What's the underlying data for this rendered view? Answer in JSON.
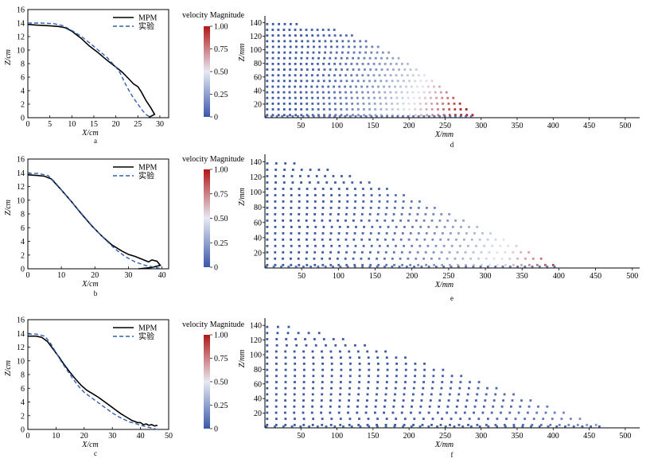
{
  "colorbar": {
    "title": "velocity Magnitude",
    "ticks": [
      "1.00",
      "0.75",
      "0.50",
      "0.25",
      "0"
    ],
    "colors": {
      "low": "#3a57a8",
      "mid": "#e6e9f2",
      "high": "#b01818"
    }
  },
  "legend": {
    "mpm": "MPM",
    "exp": "实验"
  },
  "series_colors": {
    "mpm": "#000000",
    "exp": "#2f5fb5"
  },
  "chart_data": [
    {
      "panel": "a",
      "type": "line",
      "xlabel": "X/cm",
      "ylabel": "Z/cm",
      "xlim": [
        0,
        32
      ],
      "ylim": [
        0,
        16
      ],
      "xticks": [
        0,
        5,
        10,
        15,
        20,
        25,
        30
      ],
      "yticks": [
        0,
        2,
        4,
        6,
        8,
        10,
        12,
        14,
        16
      ],
      "series": [
        {
          "name": "MPM",
          "x": [
            0,
            2,
            5,
            7,
            8.5,
            10,
            12,
            14,
            16,
            18,
            20,
            21.5,
            23,
            24,
            25,
            25.8,
            26.8,
            28,
            28.8,
            27.5
          ],
          "y": [
            13.8,
            13.7,
            13.6,
            13.5,
            13.3,
            12.8,
            11.8,
            10.6,
            9.6,
            8.5,
            7.5,
            6.7,
            5.7,
            5.0,
            4.6,
            3.8,
            2.6,
            1.4,
            0.5,
            0.05
          ]
        },
        {
          "name": "实验",
          "x": [
            0,
            3,
            6,
            8,
            10,
            12,
            14,
            16,
            18,
            20,
            21,
            22,
            23,
            24,
            25,
            26,
            27,
            28
          ],
          "y": [
            14.0,
            14.0,
            13.9,
            13.6,
            12.9,
            12.1,
            11.1,
            10.0,
            8.9,
            7.5,
            6.6,
            5.2,
            4.0,
            2.9,
            2.0,
            1.1,
            0.4,
            0.0
          ]
        }
      ]
    },
    {
      "panel": "b",
      "type": "line",
      "xlabel": "X/cm",
      "ylabel": "Z/cm",
      "xlim": [
        0,
        42
      ],
      "ylim": [
        0,
        16
      ],
      "xticks": [
        0,
        10,
        20,
        30,
        40
      ],
      "yticks": [
        0,
        2,
        4,
        6,
        8,
        10,
        12,
        14,
        16
      ],
      "series": [
        {
          "name": "MPM",
          "x": [
            0,
            3,
            5,
            7,
            10,
            13,
            16,
            19,
            22,
            25,
            28,
            30,
            32,
            34,
            35,
            36,
            37,
            38.5,
            39.5,
            37,
            33
          ],
          "y": [
            13.7,
            13.6,
            13.5,
            13.1,
            11.5,
            9.8,
            8.0,
            6.3,
            4.8,
            3.5,
            2.6,
            2.1,
            1.8,
            1.4,
            1.2,
            1.0,
            1.3,
            1.1,
            0.5,
            0.2,
            0.0
          ]
        },
        {
          "name": "实验",
          "x": [
            0,
            3,
            6,
            8,
            11,
            14,
            17,
            20,
            23,
            26,
            29,
            32,
            35,
            38,
            40
          ],
          "y": [
            13.9,
            13.9,
            13.6,
            12.7,
            10.9,
            9.2,
            7.5,
            5.8,
            4.3,
            2.9,
            1.8,
            1.0,
            0.5,
            0.2,
            0.0
          ]
        }
      ]
    },
    {
      "panel": "c",
      "type": "line",
      "xlabel": "X/cm",
      "ylabel": "Z/cm",
      "xlim": [
        0,
        50
      ],
      "ylim": [
        0,
        16
      ],
      "xticks": [
        0,
        10,
        20,
        30,
        40,
        50
      ],
      "yticks": [
        0,
        2,
        4,
        6,
        8,
        10,
        12,
        14,
        16
      ],
      "series": [
        {
          "name": "MPM",
          "x": [
            0,
            3,
            5,
            7,
            9,
            11,
            13,
            15,
            17,
            19,
            21,
            23,
            25,
            27,
            29,
            31,
            33,
            35,
            37,
            39,
            40,
            41,
            42,
            43,
            44,
            45,
            46
          ],
          "y": [
            13.6,
            13.6,
            13.4,
            12.8,
            11.7,
            10.6,
            9.4,
            8.3,
            7.3,
            6.4,
            5.7,
            5.2,
            4.7,
            4.1,
            3.5,
            2.9,
            2.3,
            1.8,
            1.3,
            1.0,
            1.0,
            0.7,
            0.8,
            0.6,
            0.7,
            0.5,
            0.6
          ]
        },
        {
          "name": "实验",
          "x": [
            0,
            3,
            6,
            8,
            10,
            12,
            14,
            16,
            18,
            20,
            22,
            24,
            26,
            28,
            30,
            32,
            34,
            36,
            38,
            40,
            42,
            44,
            46
          ],
          "y": [
            13.9,
            13.9,
            13.6,
            12.6,
            11.2,
            9.8,
            8.6,
            7.4,
            6.3,
            5.4,
            4.8,
            4.2,
            3.6,
            3.0,
            2.4,
            1.9,
            1.5,
            1.1,
            0.9,
            0.6,
            0.4,
            0.2,
            0.0
          ]
        }
      ]
    },
    {
      "panel": "d",
      "type": "scatter",
      "xlabel": "X/mm",
      "ylabel": "Z/mm",
      "xlim": [
        0,
        520
      ],
      "ylim": [
        0,
        150
      ],
      "xticks": [
        50,
        100,
        150,
        200,
        250,
        300,
        350,
        400,
        450,
        500
      ],
      "yticks": [
        20,
        40,
        60,
        80,
        100,
        120,
        140
      ],
      "profile": {
        "top": 138,
        "runout": 292,
        "flat": 0.15,
        "shape": 1.8
      },
      "velocity_range": [
        0,
        1
      ]
    },
    {
      "panel": "e",
      "type": "scatter",
      "xlabel": "X/mm",
      "ylabel": "Z/mm",
      "xlim": [
        0,
        510
      ],
      "ylim": [
        0,
        150
      ],
      "xticks": [
        50,
        100,
        150,
        200,
        250,
        300,
        350,
        400,
        450,
        500
      ],
      "yticks": [
        20,
        40,
        60,
        80,
        100,
        120,
        140
      ],
      "profile": {
        "top": 138,
        "runout": 400,
        "flat": 0.1,
        "shape": 1.35
      },
      "velocity_range": [
        0,
        1
      ]
    },
    {
      "panel": "f",
      "type": "scatter",
      "xlabel": "X/mm",
      "ylabel": "Z/mm",
      "xlim": [
        0,
        520
      ],
      "ylim": [
        0,
        150
      ],
      "xticks": [
        50,
        100,
        150,
        200,
        250,
        300,
        350,
        400,
        450,
        500
      ],
      "yticks": [
        20,
        40,
        60,
        80,
        100,
        120,
        140
      ],
      "profile": {
        "top": 138,
        "runout": 470,
        "flat": 0.07,
        "shape": 1.2
      },
      "velocity_range": [
        0,
        1
      ]
    }
  ]
}
